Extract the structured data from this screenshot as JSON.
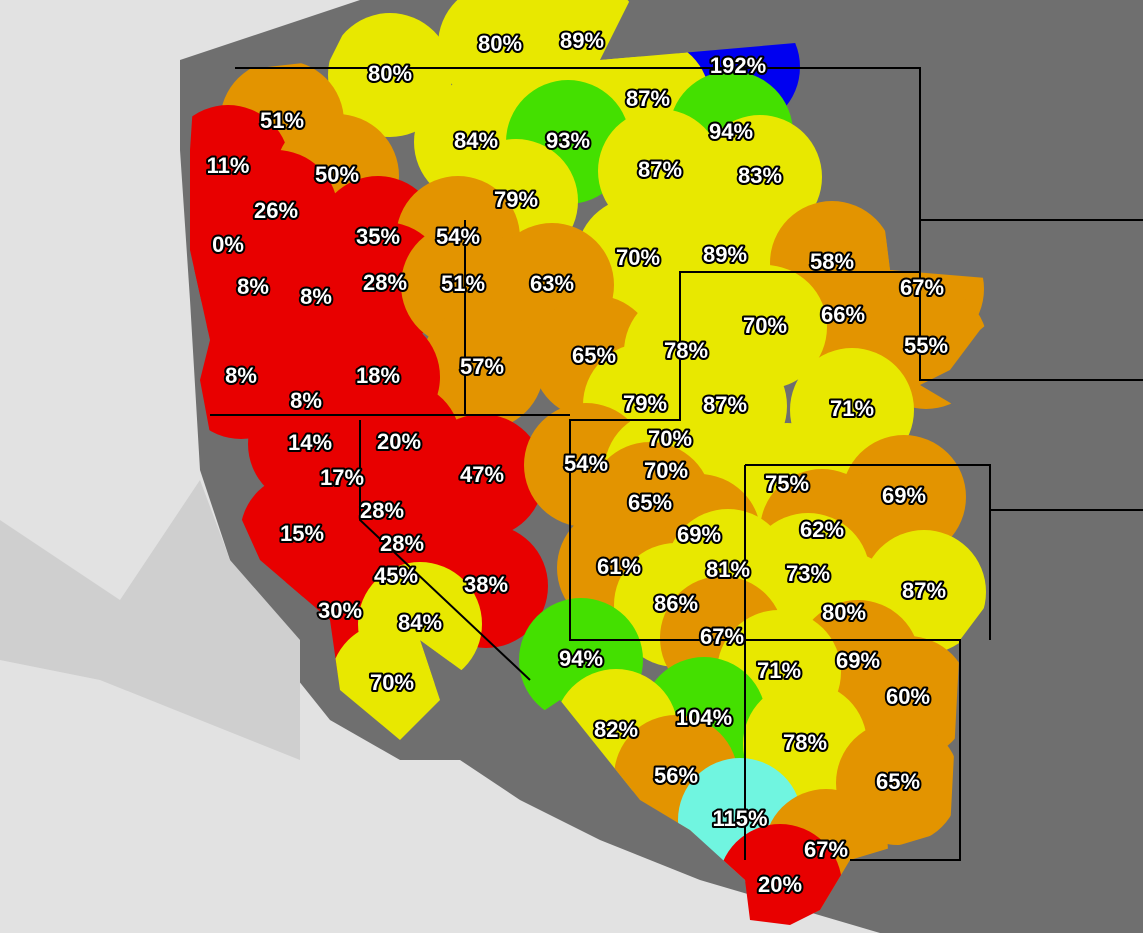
{
  "labels": [
    {
      "text": "80%",
      "color": "#e8e800"
    },
    {
      "text": "89%",
      "color": "#e8e800"
    },
    {
      "text": "192%",
      "color": "#0000f0"
    },
    {
      "text": "80%",
      "color": "#e8e800"
    },
    {
      "text": "87%",
      "color": "#e8e800"
    },
    {
      "text": "51%",
      "color": "#e39400"
    },
    {
      "text": "84%",
      "color": "#e8e800"
    },
    {
      "text": "93%",
      "color": "#44e000"
    },
    {
      "text": "94%",
      "color": "#44e000"
    },
    {
      "text": "11%",
      "color": "#e80000"
    },
    {
      "text": "50%",
      "color": "#e39400"
    },
    {
      "text": "87%",
      "color": "#e8e800"
    },
    {
      "text": "83%",
      "color": "#e8e800"
    },
    {
      "text": "79%",
      "color": "#e8e800"
    },
    {
      "text": "26%",
      "color": "#e80000"
    },
    {
      "text": "0%",
      "color": "#e80000"
    },
    {
      "text": "35%",
      "color": "#e80000"
    },
    {
      "text": "54%",
      "color": "#e39400"
    },
    {
      "text": "70%",
      "color": "#e8e800"
    },
    {
      "text": "89%",
      "color": "#e8e800"
    },
    {
      "text": "58%",
      "color": "#e39400"
    },
    {
      "text": "8%",
      "color": "#e80000"
    },
    {
      "text": "8%",
      "color": "#e80000"
    },
    {
      "text": "28%",
      "color": "#e80000"
    },
    {
      "text": "51%",
      "color": "#e39400"
    },
    {
      "text": "63%",
      "color": "#e39400"
    },
    {
      "text": "67%",
      "color": "#e39400"
    },
    {
      "text": "66%",
      "color": "#e39400"
    },
    {
      "text": "70%",
      "color": "#e8e800"
    },
    {
      "text": "55%",
      "color": "#e39400"
    },
    {
      "text": "57%",
      "color": "#e39400"
    },
    {
      "text": "65%",
      "color": "#e39400"
    },
    {
      "text": "78%",
      "color": "#e8e800"
    },
    {
      "text": "8%",
      "color": "#e80000"
    },
    {
      "text": "18%",
      "color": "#e80000"
    },
    {
      "text": "8%",
      "color": "#e80000"
    },
    {
      "text": "79%",
      "color": "#e8e800"
    },
    {
      "text": "87%",
      "color": "#e8e800"
    },
    {
      "text": "71%",
      "color": "#e8e800"
    },
    {
      "text": "14%",
      "color": "#e80000"
    },
    {
      "text": "20%",
      "color": "#e80000"
    },
    {
      "text": "70%",
      "color": "#e8e800"
    },
    {
      "text": "17%",
      "color": "#e80000"
    },
    {
      "text": "47%",
      "color": "#e80000"
    },
    {
      "text": "54%",
      "color": "#e39400"
    },
    {
      "text": "70%",
      "color": "#e8e800"
    },
    {
      "text": "75%",
      "color": "#e8e800"
    },
    {
      "text": "69%",
      "color": "#e39400"
    },
    {
      "text": "28%",
      "color": "#e80000"
    },
    {
      "text": "65%",
      "color": "#e39400"
    },
    {
      "text": "15%",
      "color": "#e80000"
    },
    {
      "text": "62%",
      "color": "#e39400"
    },
    {
      "text": "69%",
      "color": "#e39400"
    },
    {
      "text": "28%",
      "color": "#e80000"
    },
    {
      "text": "61%",
      "color": "#e39400"
    },
    {
      "text": "81%",
      "color": "#e8e800"
    },
    {
      "text": "73%",
      "color": "#e8e800"
    },
    {
      "text": "45%",
      "color": "#e80000"
    },
    {
      "text": "38%",
      "color": "#e80000"
    },
    {
      "text": "87%",
      "color": "#e8e800"
    },
    {
      "text": "86%",
      "color": "#e8e800"
    },
    {
      "text": "80%",
      "color": "#e8e800"
    },
    {
      "text": "30%",
      "color": "#e80000"
    },
    {
      "text": "84%",
      "color": "#e8e800"
    },
    {
      "text": "67%",
      "color": "#e39400"
    },
    {
      "text": "94%",
      "color": "#44e000"
    },
    {
      "text": "69%",
      "color": "#e39400"
    },
    {
      "text": "71%",
      "color": "#e8e800"
    },
    {
      "text": "70%",
      "color": "#e8e800"
    },
    {
      "text": "60%",
      "color": "#e39400"
    },
    {
      "text": "104%",
      "color": "#44e000"
    },
    {
      "text": "82%",
      "color": "#e8e800"
    },
    {
      "text": "78%",
      "color": "#e8e800"
    },
    {
      "text": "56%",
      "color": "#e39400"
    },
    {
      "text": "65%",
      "color": "#e39400"
    },
    {
      "text": "115%",
      "color": "#70f5e0"
    },
    {
      "text": "67%",
      "color": "#e39400"
    },
    {
      "text": "20%",
      "color": "#e80000"
    }
  ]
}
